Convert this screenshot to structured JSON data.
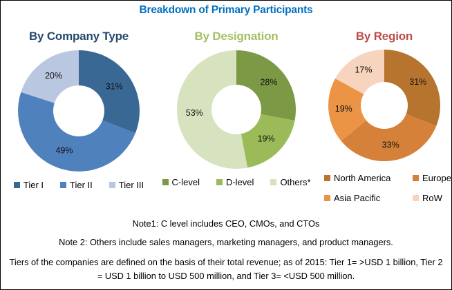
{
  "header": {
    "title": "Breakdown of Primary Participants",
    "title_color": "#0070C0"
  },
  "chart_data": [
    {
      "type": "donut",
      "title": "By Company Type",
      "title_color": "#25476D",
      "categories": [
        "Tier I",
        "Tier II",
        "Tier III"
      ],
      "values": [
        31,
        49,
        20
      ],
      "unit": "%",
      "colors": [
        "#3A6894",
        "#4F81BD",
        "#B9C7E1"
      ],
      "legend_position": "bottom"
    },
    {
      "type": "donut",
      "title": "By Designation",
      "title_color": "#A3C063",
      "categories": [
        "C-level",
        "D-level",
        "Others*"
      ],
      "values": [
        28,
        19,
        53
      ],
      "unit": "%",
      "colors": [
        "#7C9A45",
        "#9BBB59",
        "#D7E2BE"
      ],
      "legend_position": "bottom"
    },
    {
      "type": "donut",
      "title": "By Region",
      "title_color": "#BE4B48",
      "categories": [
        "North America",
        "Europe",
        "Asia Pacific",
        "RoW"
      ],
      "values": [
        31,
        33,
        19,
        17
      ],
      "unit": "%",
      "colors": [
        "#B6742F",
        "#D5813A",
        "#EC9445",
        "#F6D4BD"
      ],
      "legend_position": "bottom-2col"
    }
  ],
  "notes": {
    "note1": "Note1: C level includes CEO, CMOs, and CTOs",
    "note2": "Note 2: Others include sales managers, marketing managers, and product managers.",
    "tiers": "Tiers of the companies are defined on the basis of their total revenue; as of 2015: Tier 1= >USD 1 billion, Tier 2 = USD 1 billion to USD 500 million, and Tier 3= <USD 500 million."
  }
}
